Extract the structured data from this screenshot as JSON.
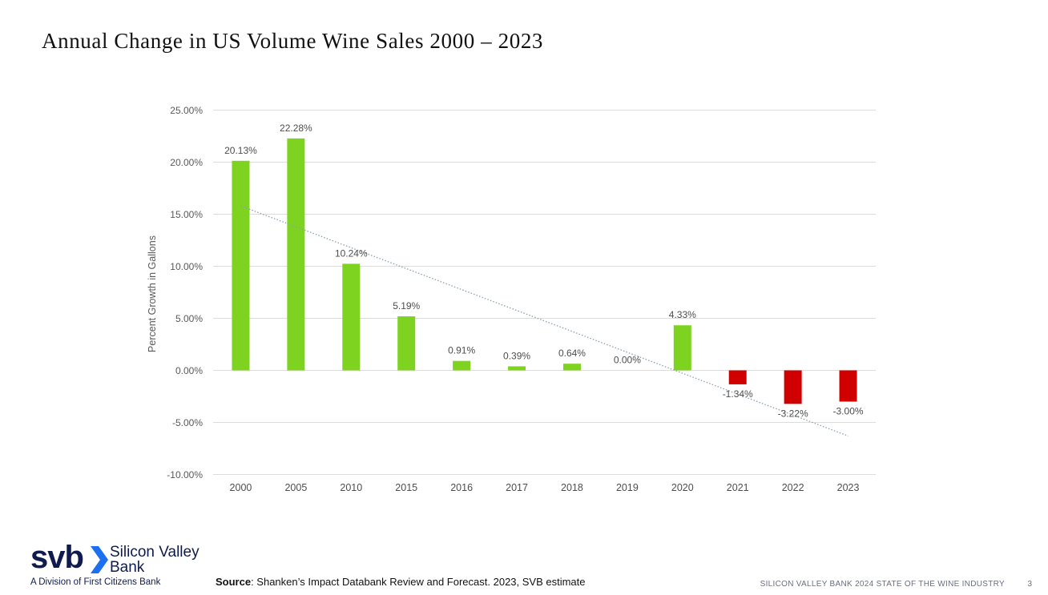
{
  "slide": {
    "title": "Annual Change in US Volume Wine Sales 2000 – 2023",
    "source_label": "Source",
    "source_text": ": Shanken’s Impact Databank Review and Forecast. 2023, SVB estimate",
    "footer_text": "SILICON VALLEY BANK 2024 STATE OF THE WINE INDUSTRY",
    "page_number": "3"
  },
  "logo": {
    "mark": "svb",
    "name": "Silicon Valley Bank",
    "subtitle": "A Division of First Citizens Bank",
    "color": "#0f1b4c",
    "chevron_color": "#1d6ff2"
  },
  "chart_data": {
    "type": "bar",
    "title": "",
    "xlabel": "",
    "ylabel": "Percent Growth in Gallons",
    "categories": [
      "2000",
      "2005",
      "2010",
      "2015",
      "2016",
      "2017",
      "2018",
      "2019",
      "2020",
      "2021",
      "2022",
      "2023"
    ],
    "values": [
      20.13,
      22.28,
      10.24,
      5.19,
      0.91,
      0.39,
      0.64,
      0.0,
      4.33,
      -1.34,
      -3.22,
      -3.0
    ],
    "data_labels": [
      "20.13%",
      "22.28%",
      "10.24%",
      "5.19%",
      "0.91%",
      "0.39%",
      "0.64%",
      "0.00%",
      "4.33%",
      "-1.34%",
      "-3.22%",
      "-3.00%"
    ],
    "ylim": [
      -10,
      25
    ],
    "yticks": [
      25,
      20,
      15,
      10,
      5,
      0,
      -5,
      -10
    ],
    "ytick_labels": [
      "25.00%",
      "20.00%",
      "15.00%",
      "10.00%",
      "5.00%",
      "0.00%",
      "-5.00%",
      "-10.00%"
    ],
    "grid": true,
    "legend": "none",
    "positive_color": "#7ed321",
    "negative_color": "#d10000",
    "trendline": {
      "type": "linear",
      "style": "dotted",
      "color": "#8da0ac",
      "start_value": 15.8,
      "end_value": -6.3
    }
  }
}
